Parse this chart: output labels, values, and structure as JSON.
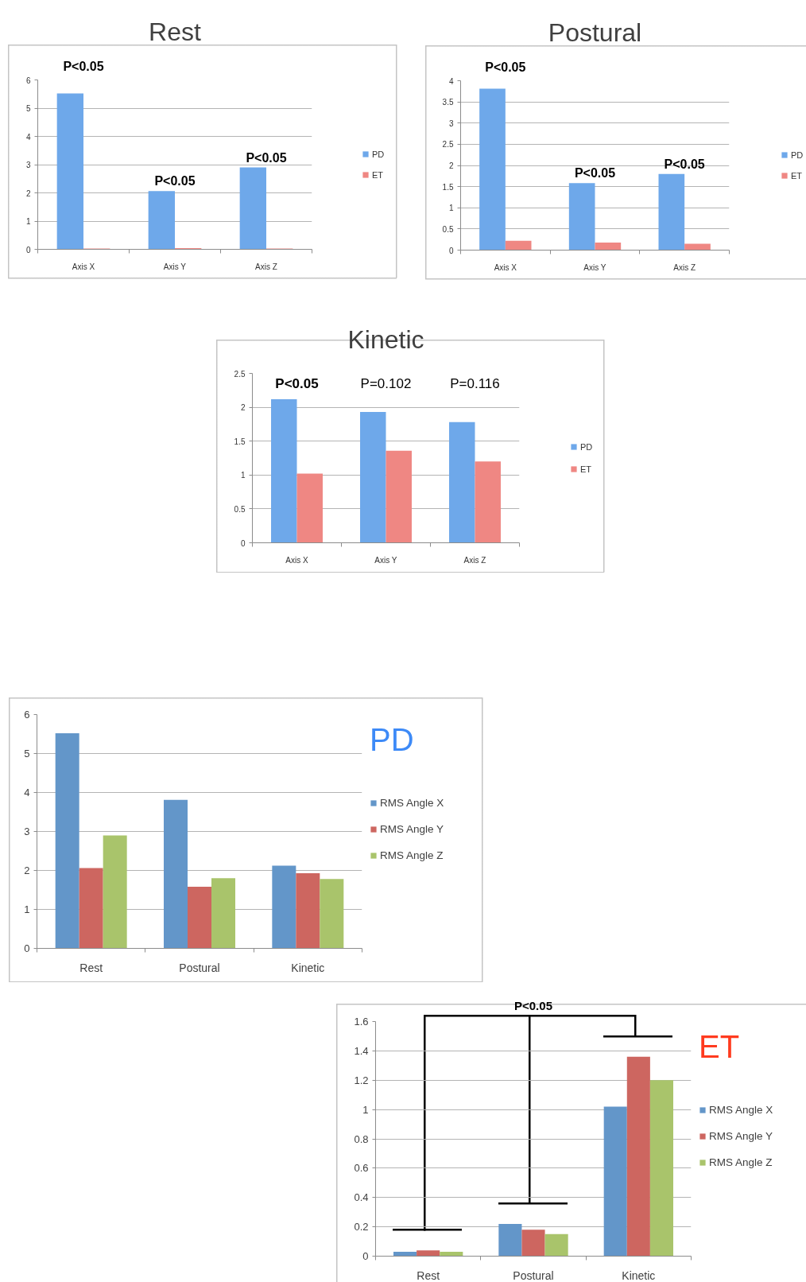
{
  "chart_data": [
    {
      "type": "bar",
      "title": "Rest",
      "categories": [
        "Axis X",
        "Axis Y",
        "Axis Z"
      ],
      "series": [
        {
          "name": "PD",
          "color": "#6ea8ea",
          "values": [
            5.52,
            2.06,
            2.9
          ]
        },
        {
          "name": "ET",
          "color": "#ef8783",
          "values": [
            0.03,
            0.04,
            0.03
          ]
        }
      ],
      "ylim": [
        0,
        6
      ],
      "yticks": [
        0,
        1,
        2,
        3,
        4,
        5,
        6
      ],
      "grid": "y",
      "legend": "right",
      "annotations": [
        {
          "text": "P<0.05",
          "x": "Axis X",
          "y": 5.52
        },
        {
          "text": "P<0.05",
          "x": "Axis Y",
          "y": 2.06
        },
        {
          "text": "P<0.05",
          "x": "Axis Z",
          "y": 2.9
        }
      ]
    },
    {
      "type": "bar",
      "title": "Postural",
      "categories": [
        "Axis X",
        "Axis Y",
        "Axis Z"
      ],
      "series": [
        {
          "name": "PD",
          "color": "#6ea8ea",
          "values": [
            3.81,
            1.58,
            1.8
          ]
        },
        {
          "name": "ET",
          "color": "#ef8783",
          "values": [
            0.22,
            0.18,
            0.15
          ]
        }
      ],
      "ylim": [
        0,
        4
      ],
      "yticks": [
        0,
        0.5,
        1,
        1.5,
        2,
        2.5,
        3,
        3.5,
        4
      ],
      "grid": "y",
      "legend": "right",
      "annotations": [
        {
          "text": "P<0.05",
          "x": "Axis X",
          "y": 3.81
        },
        {
          "text": "P<0.05",
          "x": "Axis Y",
          "y": 1.58
        },
        {
          "text": "P<0.05",
          "x": "Axis Z",
          "y": 1.8
        }
      ]
    },
    {
      "type": "bar",
      "title": "Kinetic",
      "categories": [
        "Axis X",
        "Axis Y",
        "Axis Z"
      ],
      "series": [
        {
          "name": "PD",
          "color": "#6ea8ea",
          "values": [
            2.12,
            1.93,
            1.78
          ]
        },
        {
          "name": "ET",
          "color": "#ef8783",
          "values": [
            1.02,
            1.36,
            1.2
          ]
        }
      ],
      "ylim": [
        0,
        2.5
      ],
      "yticks": [
        0,
        0.5,
        1,
        1.5,
        2,
        2.5
      ],
      "grid": "y",
      "legend": "right",
      "annotations": [
        "P<0.05",
        "P=0.102",
        "P=0.116"
      ]
    },
    {
      "type": "bar",
      "title": "PD",
      "categories": [
        "Rest",
        "Postural",
        "Kinetic"
      ],
      "series": [
        {
          "name": "RMS Angle X",
          "color": "#6396c9",
          "values": [
            5.52,
            3.81,
            2.12
          ]
        },
        {
          "name": "RMS Angle Y",
          "color": "#cd6660",
          "values": [
            2.06,
            1.58,
            1.93
          ]
        },
        {
          "name": "RMS Angle Z",
          "color": "#a9c46b",
          "values": [
            2.9,
            1.8,
            1.78
          ]
        }
      ],
      "ylim": [
        0,
        6
      ],
      "yticks": [
        0,
        1,
        2,
        3,
        4,
        5,
        6
      ],
      "grid": "y",
      "legend": "right"
    },
    {
      "type": "bar",
      "title": "ET",
      "categories": [
        "Rest",
        "Postural",
        "Kinetic"
      ],
      "series": [
        {
          "name": "RMS Angle X",
          "color": "#6396c9",
          "values": [
            0.03,
            0.22,
            1.02
          ]
        },
        {
          "name": "RMS Angle Y",
          "color": "#cd6660",
          "values": [
            0.04,
            0.18,
            1.36
          ]
        },
        {
          "name": "RMS Angle Z",
          "color": "#a9c46b",
          "values": [
            0.03,
            0.15,
            1.2
          ]
        }
      ],
      "ylim": [
        0,
        1.6
      ],
      "yticks": [
        0,
        0.2,
        0.4,
        0.6,
        0.8,
        1,
        1.2,
        1.4,
        1.6
      ],
      "grid": "y",
      "legend": "right",
      "annotations": [
        "P<0.05"
      ]
    }
  ]
}
